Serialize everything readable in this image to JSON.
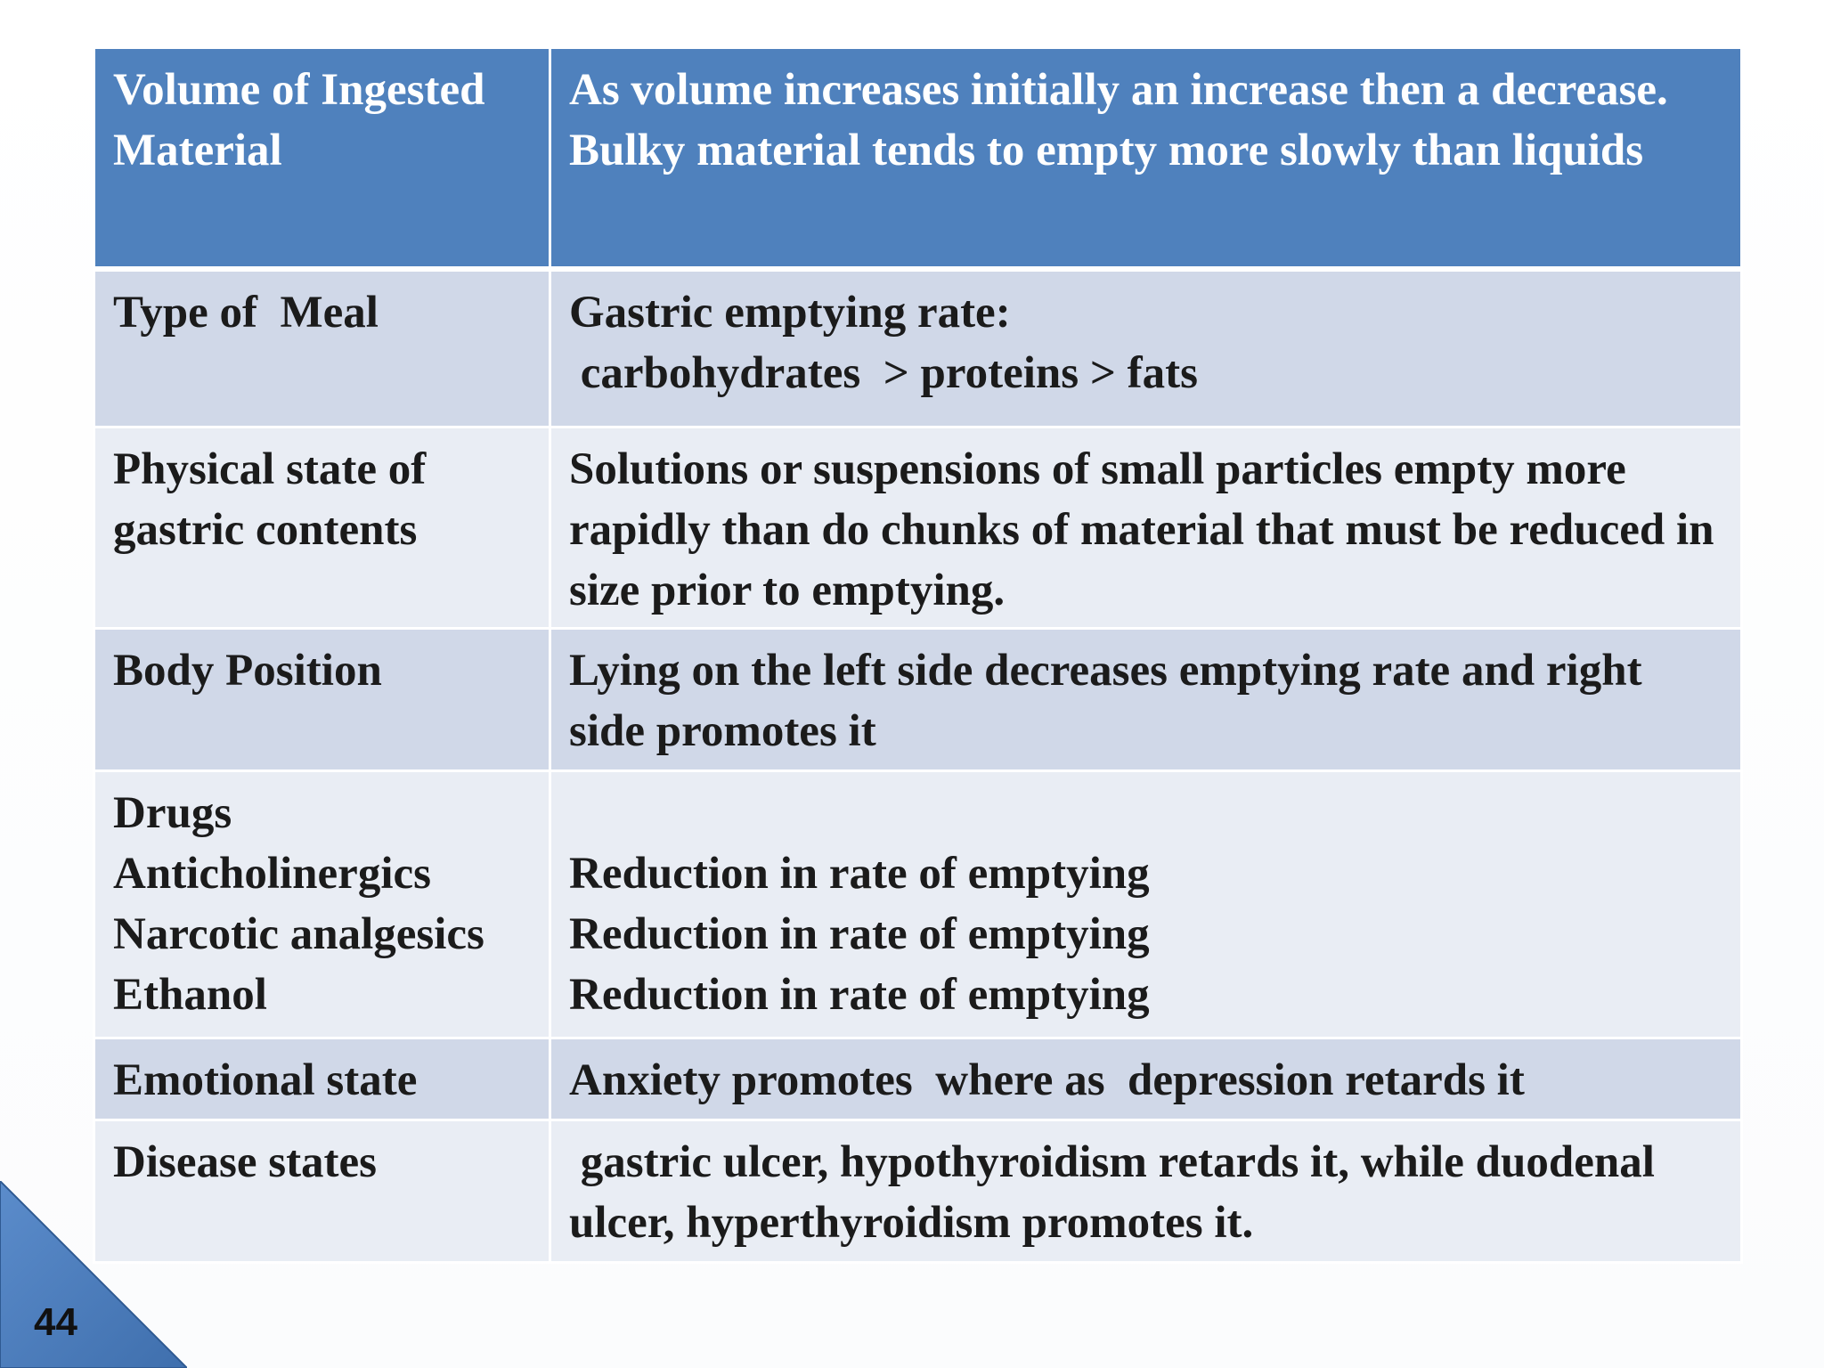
{
  "table": {
    "header": {
      "factor": "Volume of Ingested Material",
      "effect": "As volume increases initially an increase then a decrease. Bulky material tends to empty more slowly than liquids"
    },
    "rows": [
      {
        "factor": "Type of  Meal",
        "effect": "Gastric emptying rate:\n carbohydrates  > proteins > fats"
      },
      {
        "factor": "Physical state of gastric contents",
        "effect": "Solutions or suspensions of small particles empty more rapidly than do chunks of material that must be reduced in size prior to emptying."
      },
      {
        "factor": "Body Position",
        "effect": "Lying on the left side decreases emptying rate and right side promotes it"
      },
      {
        "factor": "Drugs\nAnticholinergics\nNarcotic analgesics\nEthanol",
        "effect": "\nReduction in rate of emptying\nReduction in rate of emptying\nReduction in rate of emptying"
      },
      {
        "factor": "Emotional state",
        "effect": "Anxiety promotes  where as  depression retards it"
      },
      {
        "factor": "Disease states",
        "effect": " gastric ulcer, hypothyroidism retards it, while duodenal ulcer, hyperthyroidism promotes it."
      }
    ]
  },
  "slide_number": "44",
  "colors": {
    "header_bg": "#4f81bd",
    "row_dark": "#d0d8e8",
    "row_light": "#e9edf4",
    "corner_triangle": "#4f81bd"
  }
}
